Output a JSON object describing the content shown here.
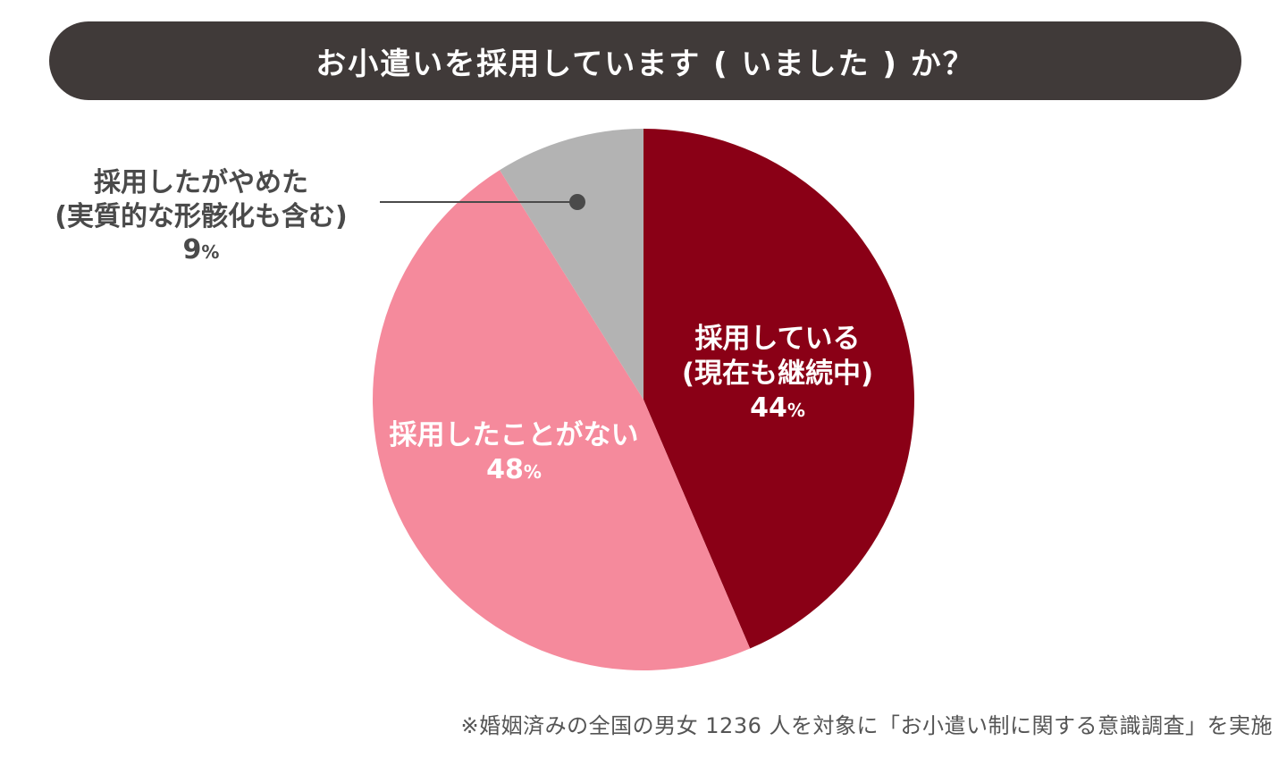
{
  "title": "お小遣いを採用しています ( いました ) か？",
  "chart_data": {
    "type": "pie",
    "start_angle_deg": 0,
    "direction": "clockwise",
    "slices": [
      {
        "key": "adopted",
        "label_lines": [
          "採用している",
          "(現在も継続中)"
        ],
        "value": 44,
        "unit": "%",
        "color": "#8a0016"
      },
      {
        "key": "never",
        "label_lines": [
          "採用したことがない"
        ],
        "value": 48,
        "unit": "%",
        "color": "#f58a9c"
      },
      {
        "key": "quit",
        "label_lines": [
          "採用したがやめた",
          "(実質的な形骸化も含む)"
        ],
        "value": 9,
        "unit": "%",
        "color": "#b3b3b3"
      }
    ],
    "leader_line_color": "#4a4a4a"
  },
  "footnote": "※婚姻済みの全国の男女 1236 人を対象に「お小遣い制に関する意識調査」を実施"
}
